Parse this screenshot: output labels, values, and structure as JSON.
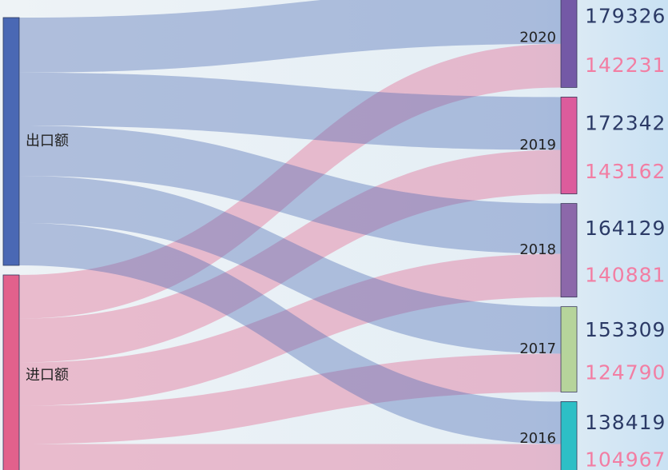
{
  "chart_data": {
    "type": "sankey",
    "categories": [
      "2020",
      "2019",
      "2018",
      "2017",
      "2016"
    ],
    "category_colors": [
      "#7459a6",
      "#dc5c9c",
      "#8c68aa",
      "#b6d49b",
      "#2dbfc6"
    ],
    "series": [
      {
        "name": "出口额",
        "color": "#4a68b4",
        "label_color": "#2b3a66",
        "values": [
          179326,
          172342,
          164129,
          153309,
          138419
        ]
      },
      {
        "name": "进口额",
        "color": "#e2618c",
        "label_color": "#f27ea3",
        "values": [
          142231,
          143162,
          140881,
          124790,
          104967
        ]
      }
    ]
  }
}
